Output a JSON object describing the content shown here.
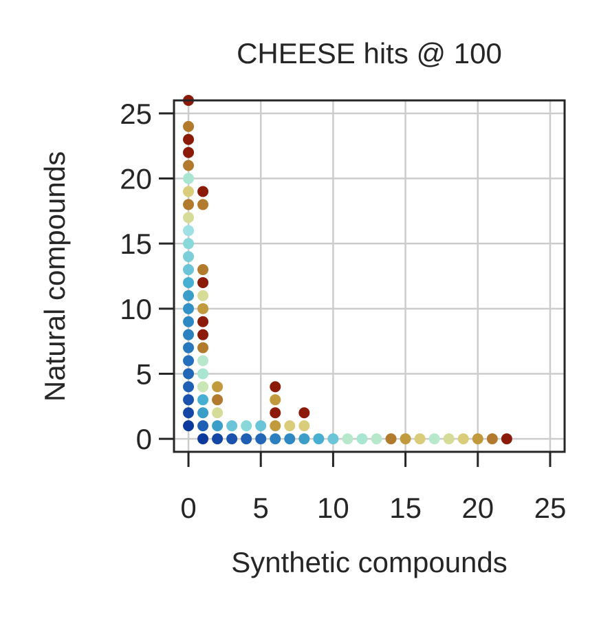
{
  "chart_data": {
    "type": "scatter",
    "title": "CHEESE hits @ 100",
    "xlabel": "Synthetic compounds",
    "ylabel": "Natural compounds",
    "xlim": [
      -1,
      26
    ],
    "ylim": [
      -1,
      26
    ],
    "xticks": [
      "0",
      "5",
      "10",
      "15",
      "20",
      "25"
    ],
    "yticks": [
      "0",
      "5",
      "10",
      "15",
      "20",
      "25"
    ],
    "grid": true,
    "legend": "none",
    "points": [
      {
        "x": 0,
        "y": 1,
        "color": "#0c3a9c"
      },
      {
        "x": 0,
        "y": 2,
        "color": "#1446a6"
      },
      {
        "x": 0,
        "y": 3,
        "color": "#1a52ae"
      },
      {
        "x": 0,
        "y": 4,
        "color": "#1f5fb4"
      },
      {
        "x": 0,
        "y": 5,
        "color": "#2266b8"
      },
      {
        "x": 0,
        "y": 6,
        "color": "#2570bc"
      },
      {
        "x": 0,
        "y": 7,
        "color": "#2878be"
      },
      {
        "x": 0,
        "y": 8,
        "color": "#2b80c0"
      },
      {
        "x": 0,
        "y": 9,
        "color": "#2e88c3"
      },
      {
        "x": 0,
        "y": 10,
        "color": "#3291c6"
      },
      {
        "x": 0,
        "y": 11,
        "color": "#3a9ec8"
      },
      {
        "x": 0,
        "y": 12,
        "color": "#47afd2"
      },
      {
        "x": 0,
        "y": 13,
        "color": "#6cc4d8"
      },
      {
        "x": 0,
        "y": 14,
        "color": "#7ccfd8"
      },
      {
        "x": 0,
        "y": 15,
        "color": "#88d8da"
      },
      {
        "x": 0,
        "y": 16,
        "color": "#9fe0e4"
      },
      {
        "x": 0,
        "y": 17,
        "color": "#d6dc98"
      },
      {
        "x": 0,
        "y": 18,
        "color": "#b27a2c"
      },
      {
        "x": 0,
        "y": 19,
        "color": "#d9cc7a"
      },
      {
        "x": 0,
        "y": 20,
        "color": "#a8e6d2"
      },
      {
        "x": 0,
        "y": 21,
        "color": "#b27a2c"
      },
      {
        "x": 0,
        "y": 22,
        "color": "#8b1a08"
      },
      {
        "x": 0,
        "y": 23,
        "color": "#8b1a08"
      },
      {
        "x": 0,
        "y": 24,
        "color": "#b27a2c"
      },
      {
        "x": 0,
        "y": 26,
        "color": "#8b1a08"
      },
      {
        "x": 1,
        "y": 0,
        "color": "#0c3a9c"
      },
      {
        "x": 1,
        "y": 1,
        "color": "#1f5fb4"
      },
      {
        "x": 1,
        "y": 2,
        "color": "#3a9ec8"
      },
      {
        "x": 1,
        "y": 3,
        "color": "#47afd2"
      },
      {
        "x": 1,
        "y": 4,
        "color": "#c8e6b6"
      },
      {
        "x": 1,
        "y": 5,
        "color": "#a8e6d2"
      },
      {
        "x": 1,
        "y": 6,
        "color": "#b8e8cc"
      },
      {
        "x": 1,
        "y": 7,
        "color": "#b27a2c"
      },
      {
        "x": 1,
        "y": 8,
        "color": "#8b1a08"
      },
      {
        "x": 1,
        "y": 9,
        "color": "#8b1a08"
      },
      {
        "x": 1,
        "y": 10,
        "color": "#c09a3c"
      },
      {
        "x": 1,
        "y": 11,
        "color": "#d6dc98"
      },
      {
        "x": 1,
        "y": 12,
        "color": "#8b1a08"
      },
      {
        "x": 1,
        "y": 13,
        "color": "#b27a2c"
      },
      {
        "x": 1,
        "y": 18,
        "color": "#b27a2c"
      },
      {
        "x": 1,
        "y": 19,
        "color": "#8b1a08"
      },
      {
        "x": 2,
        "y": 0,
        "color": "#1446a6"
      },
      {
        "x": 2,
        "y": 1,
        "color": "#3a9ec8"
      },
      {
        "x": 2,
        "y": 2,
        "color": "#d6dc98"
      },
      {
        "x": 2,
        "y": 3,
        "color": "#b27a2c"
      },
      {
        "x": 2,
        "y": 4,
        "color": "#c09a3c"
      },
      {
        "x": 3,
        "y": 0,
        "color": "#1a52ae"
      },
      {
        "x": 3,
        "y": 1,
        "color": "#6cc4d8"
      },
      {
        "x": 4,
        "y": 0,
        "color": "#1f5fb4"
      },
      {
        "x": 4,
        "y": 1,
        "color": "#88d8da"
      },
      {
        "x": 5,
        "y": 0,
        "color": "#2266b8"
      },
      {
        "x": 5,
        "y": 1,
        "color": "#6cc4d8"
      },
      {
        "x": 6,
        "y": 0,
        "color": "#2b80c0"
      },
      {
        "x": 6,
        "y": 1,
        "color": "#c09a3c"
      },
      {
        "x": 6,
        "y": 2,
        "color": "#8b1a08"
      },
      {
        "x": 6,
        "y": 3,
        "color": "#c09a3c"
      },
      {
        "x": 6,
        "y": 4,
        "color": "#8b1a08"
      },
      {
        "x": 7,
        "y": 0,
        "color": "#2e88c3"
      },
      {
        "x": 7,
        "y": 1,
        "color": "#d9cc7a"
      },
      {
        "x": 8,
        "y": 0,
        "color": "#3a9ec8"
      },
      {
        "x": 8,
        "y": 1,
        "color": "#d9cc7a"
      },
      {
        "x": 8,
        "y": 2,
        "color": "#8b1a08"
      },
      {
        "x": 9,
        "y": 0,
        "color": "#47afd2"
      },
      {
        "x": 10,
        "y": 0,
        "color": "#6cc4d8"
      },
      {
        "x": 11,
        "y": 0,
        "color": "#b8e8cc"
      },
      {
        "x": 12,
        "y": 0,
        "color": "#a8e6d2"
      },
      {
        "x": 13,
        "y": 0,
        "color": "#b8e8cc"
      },
      {
        "x": 14,
        "y": 0,
        "color": "#b27a2c"
      },
      {
        "x": 15,
        "y": 0,
        "color": "#c09a3c"
      },
      {
        "x": 16,
        "y": 0,
        "color": "#d9cc7a"
      },
      {
        "x": 17,
        "y": 0,
        "color": "#b8e8cc"
      },
      {
        "x": 18,
        "y": 0,
        "color": "#d6dc98"
      },
      {
        "x": 19,
        "y": 0,
        "color": "#d9cc7a"
      },
      {
        "x": 20,
        "y": 0,
        "color": "#c09a3c"
      },
      {
        "x": 21,
        "y": 0,
        "color": "#b27a2c"
      },
      {
        "x": 22,
        "y": 0,
        "color": "#8b1a08"
      }
    ]
  },
  "colors": {
    "grid": "#cccccc",
    "axes": "#262626",
    "text": "#262626",
    "background": "#ffffff"
  }
}
